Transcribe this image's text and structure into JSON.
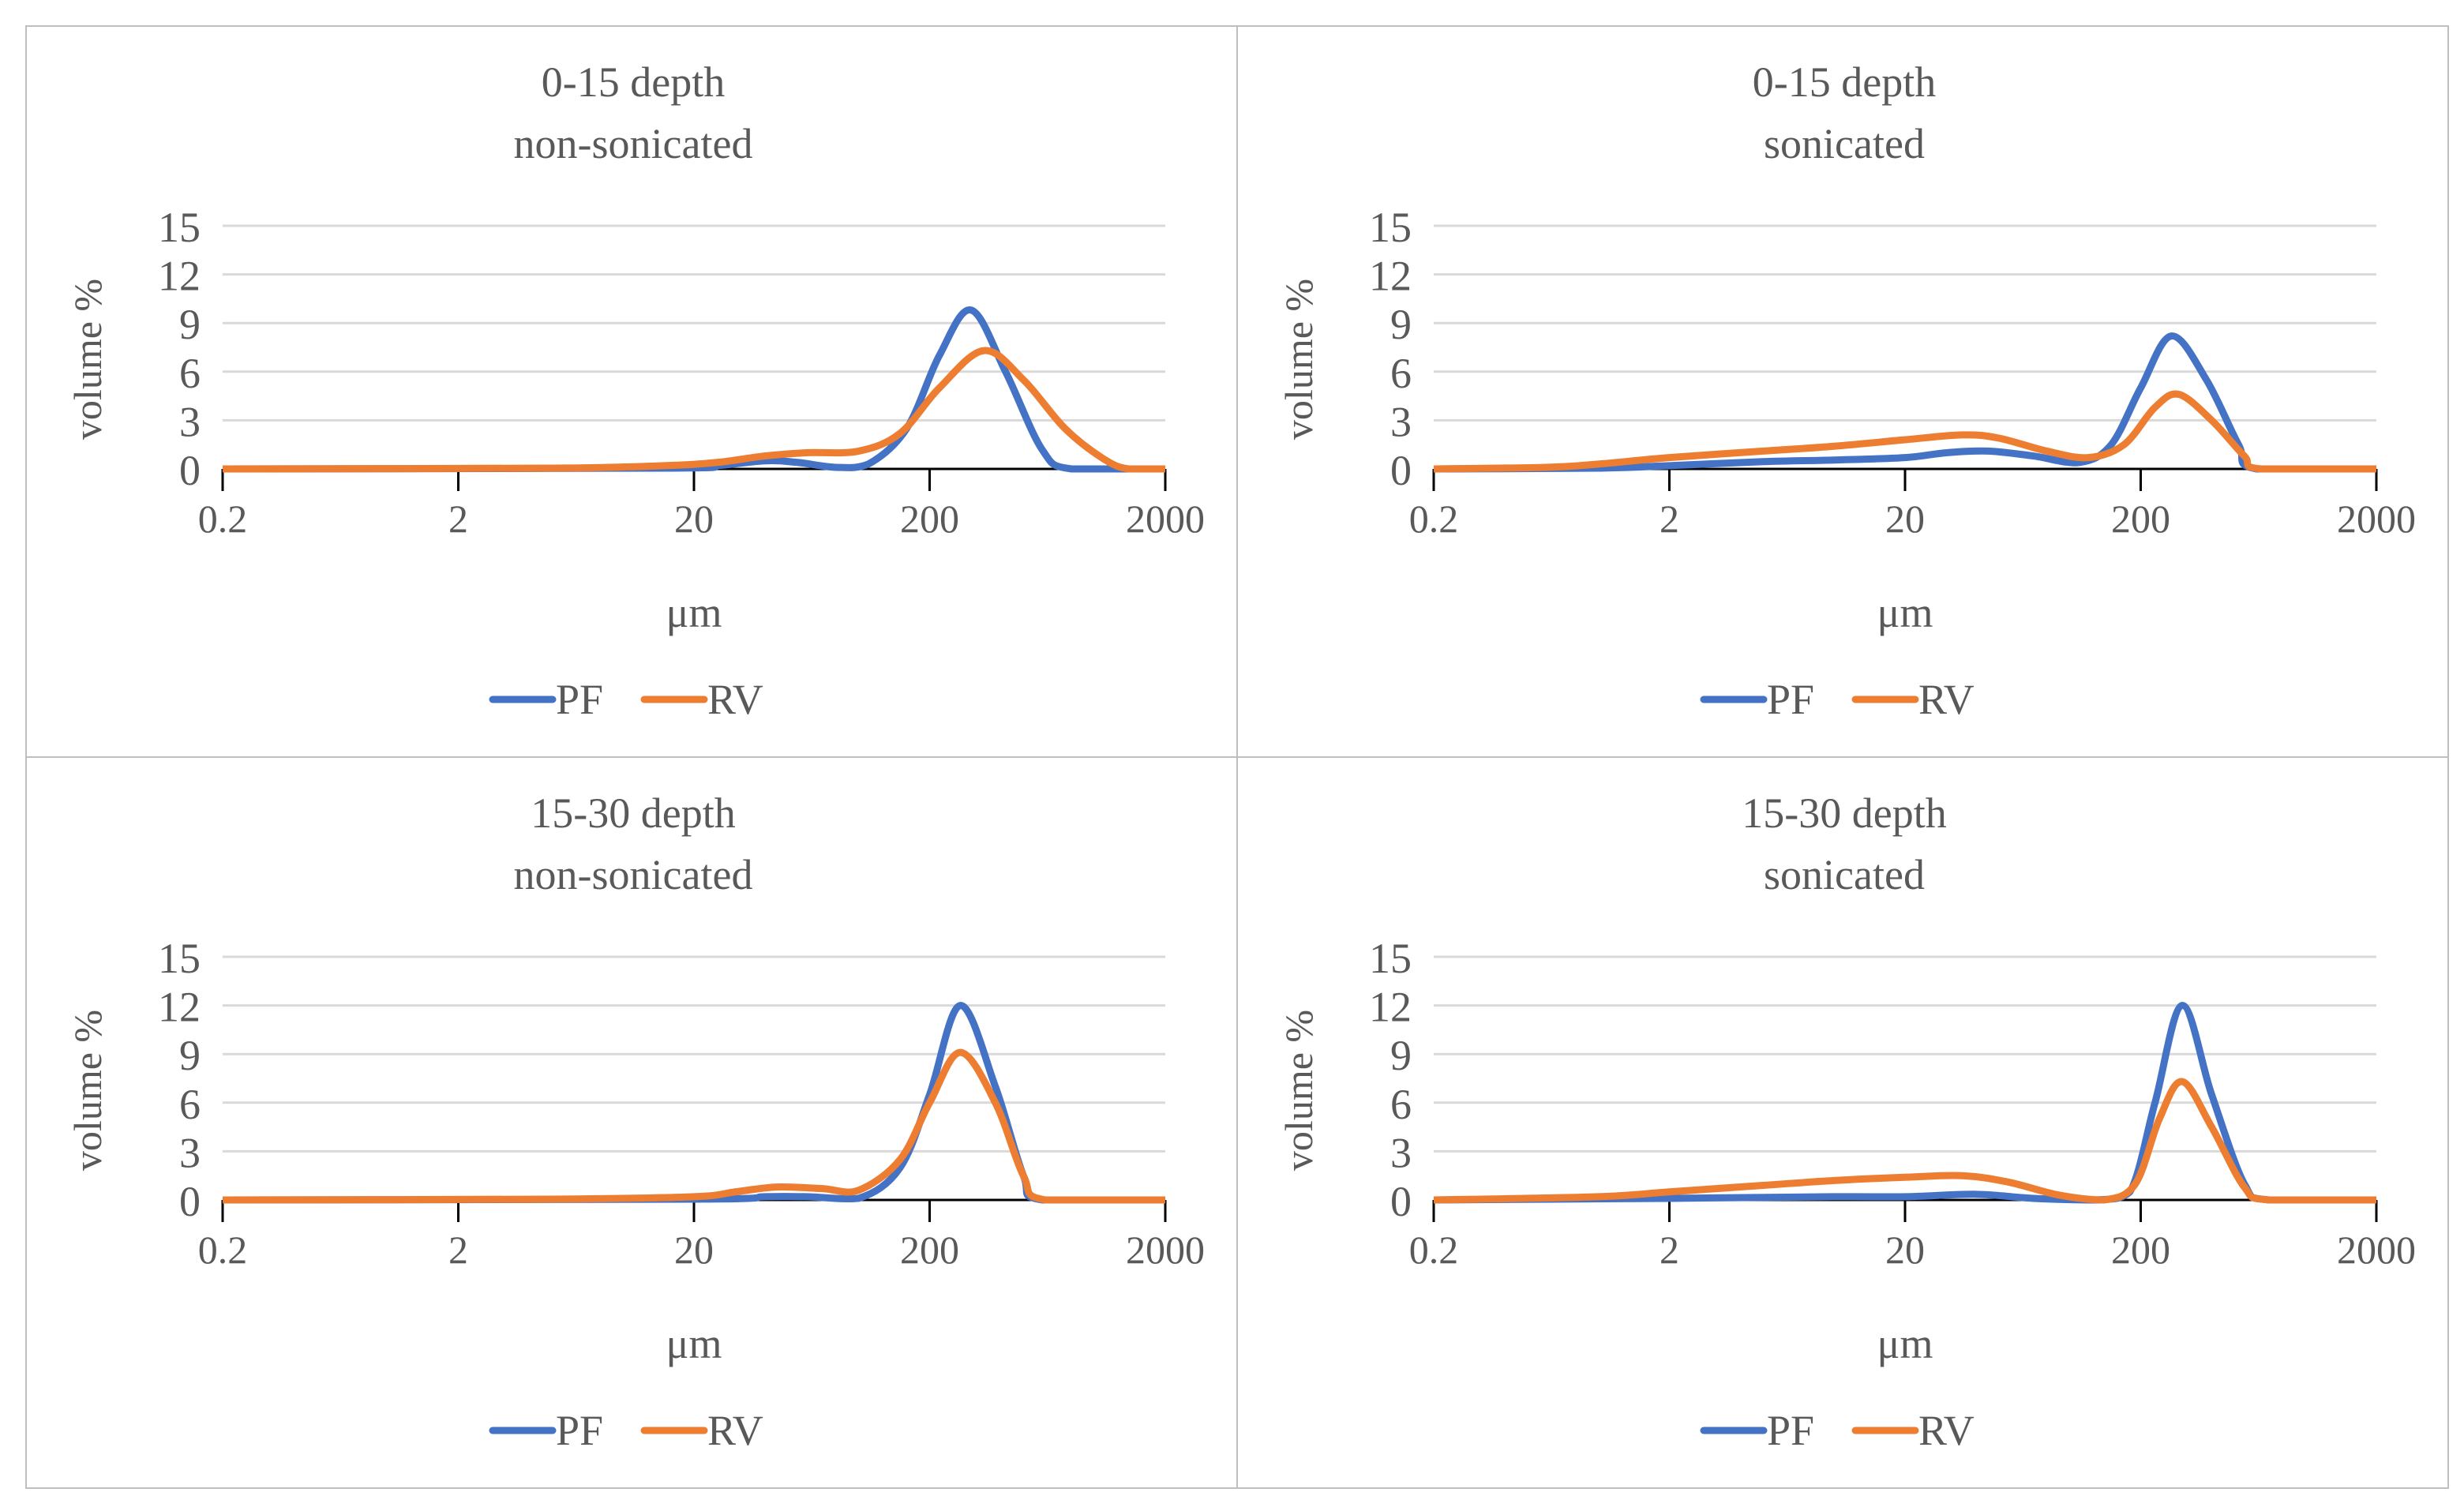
{
  "colors": {
    "PF": "#4472C4",
    "RV": "#ED7D31",
    "grid": "#d9d9d9",
    "axis": "#000000",
    "text": "#595959"
  },
  "chart_data": [
    {
      "type": "line",
      "title": [
        "0-15 depth",
        "non-sonicated"
      ],
      "xlabel": "μm",
      "ylabel": "volume %",
      "xscale": "log",
      "xlim": [
        0.2,
        2000
      ],
      "ylim": [
        0,
        15
      ],
      "xticks": [
        "0.2",
        "2",
        "20",
        "200",
        "2000"
      ],
      "yticks": [
        "0",
        "3",
        "6",
        "9",
        "12",
        "15"
      ],
      "grid": true,
      "legend": "bottom",
      "series": [
        {
          "name": "PF",
          "points": [
            [
              0.2,
              0
            ],
            [
              15,
              0.05
            ],
            [
              25,
              0.2
            ],
            [
              40,
              0.5
            ],
            [
              55,
              0.4
            ],
            [
              80,
              0.1
            ],
            [
              110,
              0.3
            ],
            [
              160,
              2.5
            ],
            [
              220,
              7
            ],
            [
              300,
              9.8
            ],
            [
              420,
              6
            ],
            [
              600,
              1.2
            ],
            [
              800,
              0
            ],
            [
              2000,
              0
            ]
          ]
        },
        {
          "name": "RV",
          "points": [
            [
              0.2,
              0
            ],
            [
              5,
              0.05
            ],
            [
              15,
              0.2
            ],
            [
              25,
              0.4
            ],
            [
              40,
              0.8
            ],
            [
              60,
              1.0
            ],
            [
              100,
              1.1
            ],
            [
              150,
              2.2
            ],
            [
              220,
              5
            ],
            [
              340,
              7.3
            ],
            [
              500,
              5.5
            ],
            [
              750,
              2.5
            ],
            [
              1100,
              0.6
            ],
            [
              1400,
              0
            ],
            [
              2000,
              0
            ]
          ]
        }
      ]
    },
    {
      "type": "line",
      "title": [
        "0-15 depth",
        "sonicated"
      ],
      "xlabel": "μm",
      "ylabel": "volume %",
      "xscale": "log",
      "xlim": [
        0.2,
        2000
      ],
      "ylim": [
        0,
        15
      ],
      "xticks": [
        "0.2",
        "2",
        "20",
        "200",
        "2000"
      ],
      "yticks": [
        "0",
        "3",
        "6",
        "9",
        "12",
        "15"
      ],
      "grid": true,
      "legend": "bottom",
      "series": [
        {
          "name": "PF",
          "points": [
            [
              0.2,
              0
            ],
            [
              1,
              0.05
            ],
            [
              2,
              0.2
            ],
            [
              5,
              0.45
            ],
            [
              10,
              0.55
            ],
            [
              20,
              0.7
            ],
            [
              30,
              1.0
            ],
            [
              45,
              1.1
            ],
            [
              70,
              0.8
            ],
            [
              110,
              0.4
            ],
            [
              150,
              1.5
            ],
            [
              200,
              5
            ],
            [
              270,
              8.2
            ],
            [
              380,
              5.5
            ],
            [
              520,
              1.5
            ],
            [
              620,
              0
            ],
            [
              2000,
              0
            ]
          ]
        },
        {
          "name": "RV",
          "points": [
            [
              0.2,
              0
            ],
            [
              0.6,
              0.1
            ],
            [
              1,
              0.3
            ],
            [
              2,
              0.7
            ],
            [
              5,
              1.1
            ],
            [
              10,
              1.4
            ],
            [
              20,
              1.8
            ],
            [
              35,
              2.1
            ],
            [
              50,
              1.9
            ],
            [
              80,
              1.1
            ],
            [
              120,
              0.7
            ],
            [
              170,
              1.5
            ],
            [
              230,
              3.8
            ],
            [
              290,
              4.6
            ],
            [
              400,
              3
            ],
            [
              550,
              0.8
            ],
            [
              650,
              0
            ],
            [
              2000,
              0
            ]
          ]
        }
      ]
    },
    {
      "type": "line",
      "title": [
        "15-30 depth",
        "non-sonicated"
      ],
      "xlabel": "μm",
      "ylabel": "volume %",
      "xscale": "log",
      "xlim": [
        0.2,
        2000
      ],
      "ylim": [
        0,
        15
      ],
      "xticks": [
        "0.2",
        "2",
        "20",
        "200",
        "2000"
      ],
      "yticks": [
        "0",
        "3",
        "6",
        "9",
        "12",
        "15"
      ],
      "grid": true,
      "legend": "bottom",
      "series": [
        {
          "name": "PF",
          "points": [
            [
              0.2,
              0
            ],
            [
              20,
              0.05
            ],
            [
              40,
              0.2
            ],
            [
              60,
              0.2
            ],
            [
              100,
              0.1
            ],
            [
              150,
              2
            ],
            [
              200,
              6.5
            ],
            [
              270,
              12
            ],
            [
              380,
              7
            ],
            [
              500,
              1.5
            ],
            [
              600,
              0
            ],
            [
              2000,
              0
            ]
          ]
        },
        {
          "name": "RV",
          "points": [
            [
              0.2,
              0
            ],
            [
              5,
              0.05
            ],
            [
              20,
              0.2
            ],
            [
              30,
              0.5
            ],
            [
              45,
              0.8
            ],
            [
              70,
              0.7
            ],
            [
              100,
              0.6
            ],
            [
              150,
              2.5
            ],
            [
              200,
              6
            ],
            [
              270,
              9.1
            ],
            [
              380,
              6
            ],
            [
              500,
              1.5
            ],
            [
              620,
              0
            ],
            [
              2000,
              0
            ]
          ]
        }
      ]
    },
    {
      "type": "line",
      "title": [
        "15-30 depth",
        "sonicated"
      ],
      "xlabel": "μm",
      "ylabel": "volume %",
      "xscale": "log",
      "xlim": [
        0.2,
        2000
      ],
      "ylim": [
        0,
        15
      ],
      "xticks": [
        "0.2",
        "2",
        "20",
        "200",
        "2000"
      ],
      "yticks": [
        "0",
        "3",
        "6",
        "9",
        "12",
        "15"
      ],
      "grid": true,
      "legend": "bottom",
      "series": [
        {
          "name": "PF",
          "points": [
            [
              0.2,
              0
            ],
            [
              2,
              0.1
            ],
            [
              10,
              0.2
            ],
            [
              20,
              0.2
            ],
            [
              40,
              0.35
            ],
            [
              70,
              0.1
            ],
            [
              130,
              0
            ],
            [
              180,
              0.5
            ],
            [
              230,
              6
            ],
            [
              300,
              12
            ],
            [
              400,
              6.5
            ],
            [
              550,
              1
            ],
            [
              700,
              0
            ],
            [
              2000,
              0
            ]
          ]
        },
        {
          "name": "RV",
          "points": [
            [
              0.2,
              0
            ],
            [
              1,
              0.2
            ],
            [
              2,
              0.5
            ],
            [
              5,
              0.9
            ],
            [
              10,
              1.2
            ],
            [
              20,
              1.4
            ],
            [
              35,
              1.5
            ],
            [
              55,
              1.1
            ],
            [
              90,
              0.3
            ],
            [
              140,
              0
            ],
            [
              190,
              1
            ],
            [
              240,
              5
            ],
            [
              300,
              7.3
            ],
            [
              400,
              4.5
            ],
            [
              550,
              0.8
            ],
            [
              700,
              0
            ],
            [
              2000,
              0
            ]
          ]
        }
      ]
    }
  ]
}
